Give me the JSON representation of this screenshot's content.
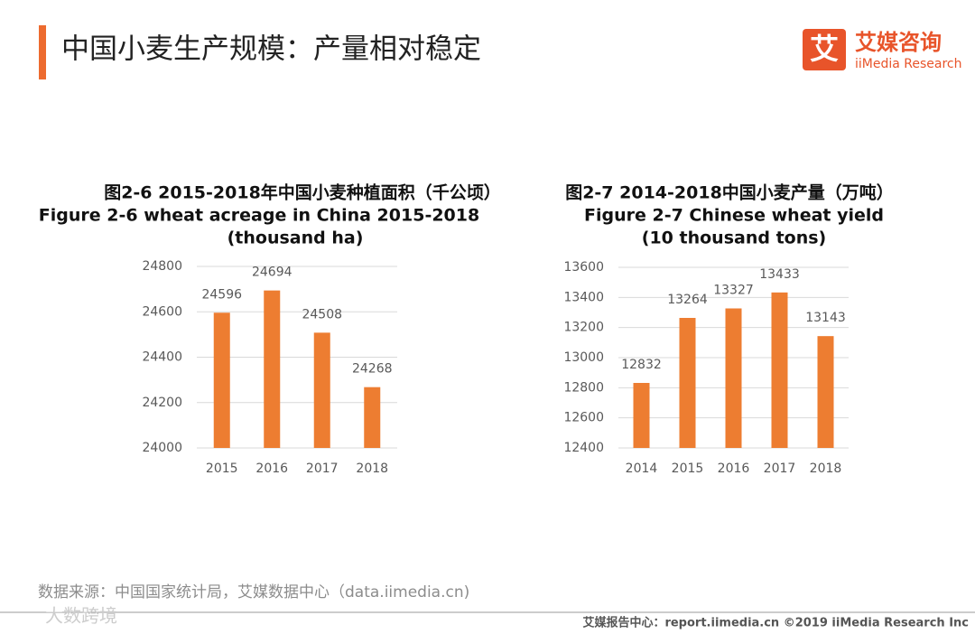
{
  "header": {
    "title": "中国小麦生产规模：产量相对稳定",
    "logo_mark": "艾",
    "logo_name": "艾媒咨询",
    "logo_sub": "iiMedia Research"
  },
  "chart_data": [
    {
      "type": "bar",
      "title_lines": [
        "图2-6 2015-2018年中国小麦种植面积（千公顷）",
        "Figure 2-6 wheat acreage in China 2015-2018",
        "(thousand  ha)"
      ],
      "categories": [
        "2015",
        "2016",
        "2017",
        "2018"
      ],
      "values": [
        24596,
        24694,
        24508,
        24268
      ],
      "color": "#ed7d31",
      "ylim": [
        24000,
        24800
      ],
      "yticks": [
        24000,
        24200,
        24400,
        24600,
        24800
      ],
      "grid": true
    },
    {
      "type": "bar",
      "title_lines": [
        "图2-7 2014-2018中国小麦产量（万吨）",
        "Figure 2-7 Chinese wheat yield",
        "(10 thousand  tons)"
      ],
      "categories": [
        "2014",
        "2015",
        "2016",
        "2017",
        "2018"
      ],
      "values": [
        12832,
        13264,
        13327,
        13433,
        13143
      ],
      "color": "#ed7d31",
      "ylim": [
        12400,
        13600
      ],
      "yticks": [
        12400,
        12600,
        12800,
        13000,
        13200,
        13400,
        13600
      ],
      "grid": true
    }
  ],
  "source": "数据来源：中国国家统计局，艾媒数据中心（data.iimedia.cn)",
  "footer": "艾媒报告中心：report.iimedia.cn  ©2019  iiMedia Research  Inc",
  "watermark": "大数跨境"
}
